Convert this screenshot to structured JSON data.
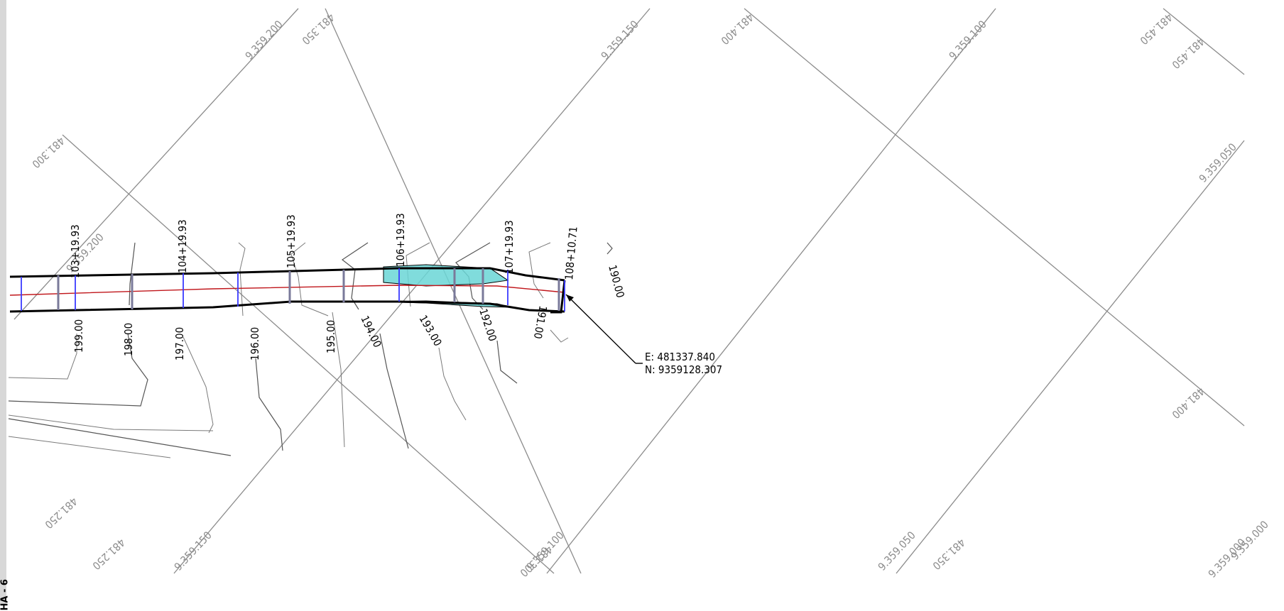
{
  "sidebar": {
    "label": "HA - 6"
  },
  "grid_labels": {
    "n_9359200_top": "9.359.200",
    "n_9359150_top": "9.359.150",
    "n_9359100_top": "9.359.100",
    "n_9359050_right": "9.359.050",
    "n_9359200_mid": "9.359.200",
    "n_9359150_bottom": "9.359.150",
    "n_9359100_bottom": "9.359.100",
    "n_9359050_bottom": "9.359.050",
    "n_9359000_a": "9.359.000",
    "n_9359000_b": "9.359.000",
    "e_481350_top": "481.350",
    "e_481400_top": "481.400",
    "e_481450_top_a": "481.450",
    "e_481450_top_b": "481.450",
    "e_481300_left": "481.300",
    "e_481400_right": "481.400",
    "e_481250_bottom_a": "481.250",
    "e_481250_bottom_b": "481.250",
    "e_481300_bottom": "481.300",
    "e_481350_bottom": "481.350"
  },
  "stations": {
    "s103": "103+19.93",
    "s104": "104+19.93",
    "s105": "105+19.93",
    "s106": "106+19.93",
    "s107": "107+19.93",
    "s108": "108+10.71"
  },
  "elevations": {
    "e199": "199.00",
    "e198": "198.00",
    "e197": "197.00",
    "e196": "196.00",
    "e195": "195.00",
    "e194": "194.00",
    "e193": "193.00",
    "e192": "192.00",
    "e191": "191.00",
    "e190": "190.00"
  },
  "callout": {
    "easting": "E: 481337.840",
    "northing": "N: 9359128.307"
  },
  "colors": {
    "grid": "#8c8c8c",
    "road_edge": "#000000",
    "centerline": "#c0161b",
    "cross_section": "#3a3aff",
    "fill_area": "#6ad6d6"
  }
}
